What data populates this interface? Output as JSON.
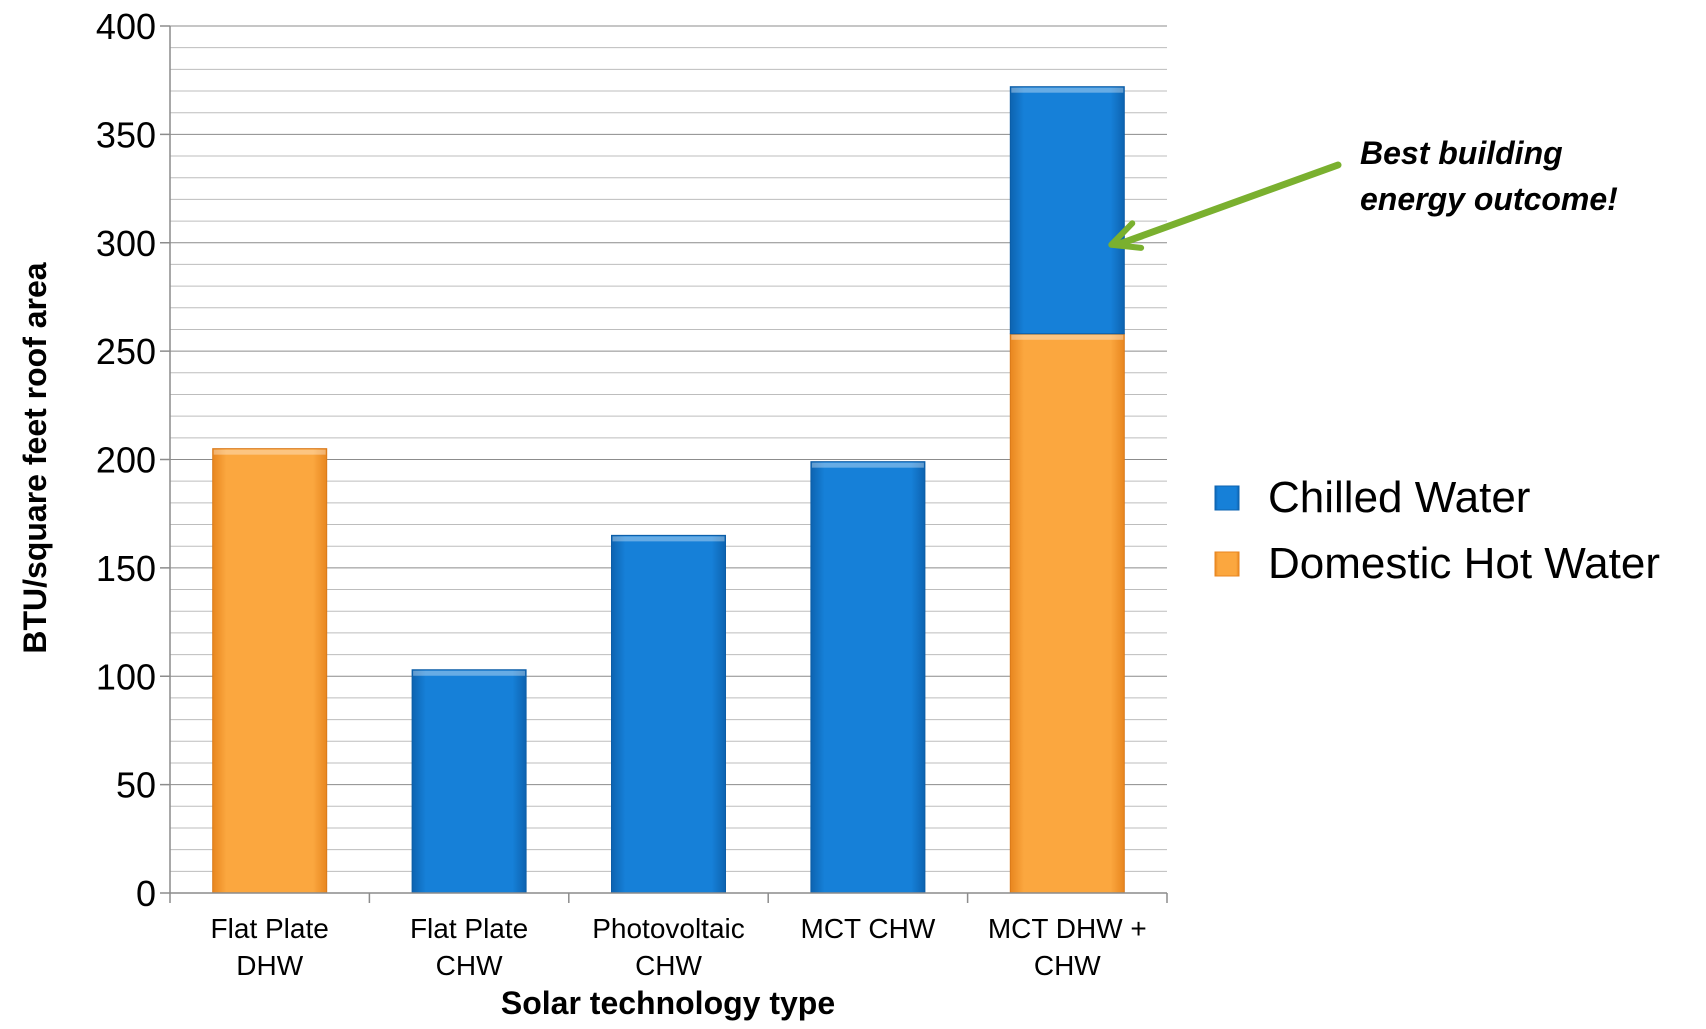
{
  "chart_data": {
    "type": "bar",
    "stacked": true,
    "categories": [
      [
        "Flat Plate",
        "DHW"
      ],
      [
        "Flat Plate",
        "CHW"
      ],
      [
        "Photovoltaic",
        "CHW"
      ],
      [
        "MCT CHW"
      ],
      [
        "MCT DHW +",
        "CHW"
      ]
    ],
    "series": [
      {
        "name": "Domestic Hot Water",
        "color": "#F9A13A",
        "values": [
          205,
          0,
          0,
          0,
          258
        ]
      },
      {
        "name": "Chilled Water",
        "color": "#1379D0",
        "values": [
          0,
          103,
          165,
          199,
          114
        ]
      }
    ],
    "xlabel": "Solar technology type",
    "ylabel": "BTU/square feet roof area",
    "ylim": [
      0,
      400
    ],
    "yticks": [
      0,
      50,
      100,
      150,
      200,
      250,
      300,
      350,
      400
    ],
    "grid": true,
    "legend": {
      "placement": "right",
      "entries": [
        "Chilled Water",
        "Domestic Hot Water"
      ]
    },
    "annotation": {
      "lines": [
        "Best building",
        "energy outcome!"
      ],
      "target_category": 4,
      "target_value": 300,
      "arrow_color": "#7AB02F"
    }
  }
}
